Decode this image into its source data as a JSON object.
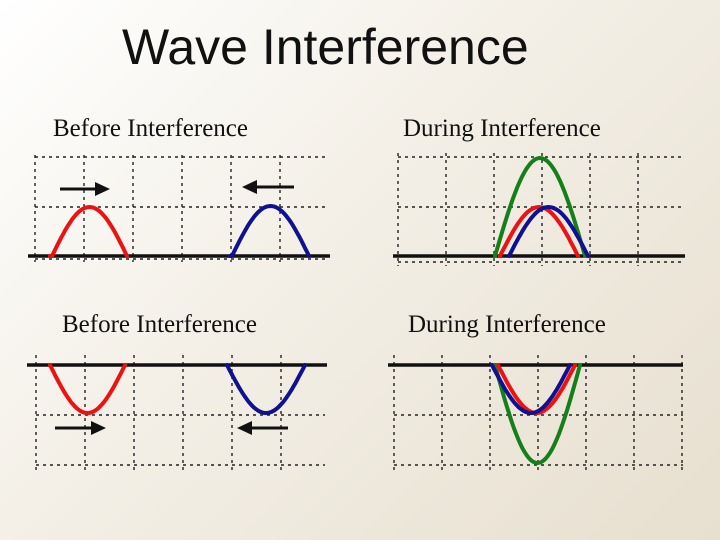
{
  "title": "Wave Interference",
  "panels": [
    {
      "title": "Before Interference"
    },
    {
      "title": "During Interference"
    },
    {
      "title": "Before Interference"
    },
    {
      "title": "During Interference"
    }
  ],
  "colors": {
    "wave1": "#ee1111",
    "wave2": "#101092",
    "resultant": "#15801a",
    "medium": "#111111",
    "grid": "#222222"
  }
}
